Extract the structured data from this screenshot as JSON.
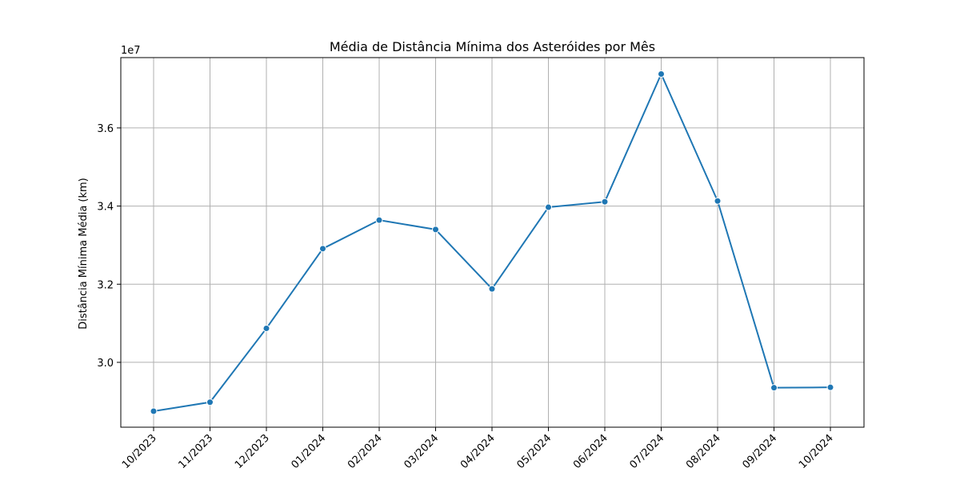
{
  "chart_data": {
    "type": "line",
    "title": "Média de Distância Mínima dos Asteróides por Mês",
    "xlabel": "",
    "ylabel": "Distância Mínima Média (km)",
    "y_offset_label": "1e7",
    "categories": [
      "10/2023",
      "11/2023",
      "12/2023",
      "01/2024",
      "02/2024",
      "03/2024",
      "04/2024",
      "05/2024",
      "06/2024",
      "07/2024",
      "08/2024",
      "09/2024",
      "10/2024"
    ],
    "series": [
      {
        "values": [
          28750000,
          28980000,
          30870000,
          32910000,
          33640000,
          33400000,
          31880000,
          33970000,
          34110000,
          37380000,
          34130000,
          29350000,
          29360000
        ],
        "color": "#1f77b4"
      }
    ],
    "ylim": [
      28340000,
      37800000
    ],
    "yticks": [
      30000000,
      32000000,
      34000000,
      36000000
    ],
    "ytick_labels": [
      "3.0",
      "3.2",
      "3.4",
      "3.6"
    ],
    "grid": true,
    "marker": "circle"
  }
}
